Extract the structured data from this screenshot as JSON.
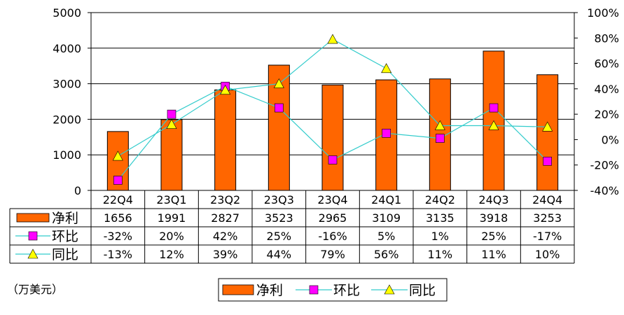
{
  "chart_data": {
    "type": "bar",
    "categories": [
      "22Q4",
      "23Q1",
      "23Q2",
      "23Q3",
      "23Q4",
      "24Q1",
      "24Q2",
      "24Q3",
      "24Q4"
    ],
    "series": [
      {
        "name": "净利",
        "type": "bar",
        "axis": "left",
        "values": [
          1656,
          1991,
          2827,
          3523,
          2965,
          3109,
          3135,
          3918,
          3253
        ],
        "table_values": [
          "1656",
          "1991",
          "2827",
          "3523",
          "2965",
          "3109",
          "3135",
          "3918",
          "3253"
        ],
        "color": "#FF6600"
      },
      {
        "name": "环比",
        "type": "line",
        "axis": "right",
        "marker": "square",
        "values": [
          -32,
          20,
          42,
          25,
          -16,
          5,
          1,
          25,
          -17
        ],
        "table_values": [
          "-32%",
          "20%",
          "42%",
          "25%",
          "-16%",
          "5%",
          "1%",
          "25%",
          "-17%"
        ],
        "color": "#FF00FF",
        "line_color": "#33CCCC"
      },
      {
        "name": "同比",
        "type": "line",
        "axis": "right",
        "marker": "triangle",
        "values": [
          -13,
          12,
          39,
          44,
          79,
          56,
          11,
          11,
          10
        ],
        "table_values": [
          "-13%",
          "12%",
          "39%",
          "44%",
          "79%",
          "56%",
          "11%",
          "11%",
          "10%"
        ],
        "color": "#FFFF00",
        "line_color": "#33CCCC"
      }
    ],
    "y_left": {
      "lim": [
        0,
        5000
      ],
      "ticks": [
        "0",
        "1000",
        "2000",
        "3000",
        "4000",
        "5000"
      ]
    },
    "y_right": {
      "lim": [
        -40,
        100
      ],
      "ticks": [
        "-40%",
        "-20%",
        "0%",
        "20%",
        "40%",
        "60%",
        "80%",
        "100%"
      ]
    },
    "grid": true,
    "legend_position": "bottom",
    "unit_note": "（万美元）"
  }
}
